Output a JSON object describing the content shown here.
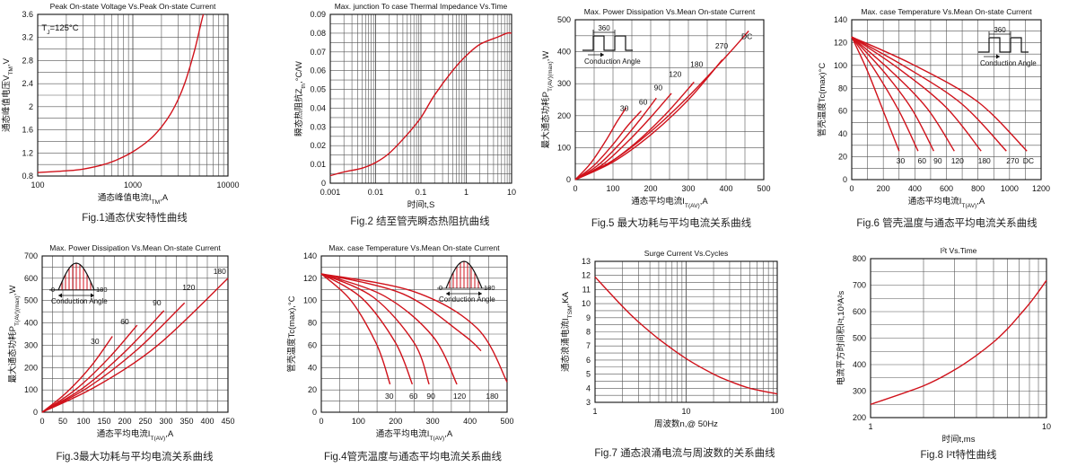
{
  "page": {
    "background": "#ffffff",
    "curve_color": "#d0121b",
    "grid_color": "#555555"
  },
  "charts": [
    {
      "id": "fig1",
      "title": "Peak On-state Voltage Vs.Peak On-state Current",
      "caption": "Fig.1通态伏安特性曲线",
      "xlabel": "通态峰值电流I_TM,A",
      "ylabel": "通态峰值电压V_TM,V",
      "xscale": "log",
      "xlim": [
        100,
        10000
      ],
      "xticks": [
        100,
        1000,
        10000
      ],
      "xticklabels": [
        "100",
        "1000",
        "10000"
      ],
      "yscale": "linear",
      "ylim": [
        0.8,
        3.6
      ],
      "yticks": [
        0.8,
        1.2,
        1.6,
        2,
        2.4,
        2.8,
        3.2,
        3.6
      ],
      "yticklabels": [
        "0.8",
        "1.2",
        "1.6",
        "2",
        "2.4",
        "2.8",
        "3.2",
        "3.6"
      ],
      "annotations": [
        {
          "text": "TJ=125°C",
          "x": 110,
          "y": 3.32
        }
      ],
      "series": [
        {
          "x": [
            100,
            200,
            300,
            500,
            700,
            1000,
            1500,
            2000,
            2500,
            3000,
            3500,
            4000,
            4500,
            5000,
            5500
          ],
          "y": [
            0.86,
            0.89,
            0.92,
            1.0,
            1.09,
            1.22,
            1.43,
            1.65,
            1.88,
            2.13,
            2.4,
            2.7,
            3.0,
            3.32,
            3.6
          ]
        }
      ]
    },
    {
      "id": "fig2",
      "title": "Max. junction To case Thermal Impedance Vs.Time",
      "caption": "Fig.2 结至管壳瞬态热阻抗曲线",
      "xlabel": "时间t,S",
      "ylabel": "瞬态热阻抗Z_th,°C/W",
      "xscale": "log",
      "xlim": [
        0.001,
        10
      ],
      "xticks": [
        0.001,
        0.01,
        0.1,
        1,
        10
      ],
      "xticklabels": [
        "0.001",
        "0.01",
        "0.1",
        "1",
        "10"
      ],
      "yscale": "linear",
      "ylim": [
        0,
        0.09
      ],
      "yticks": [
        0,
        0.01,
        0.02,
        0.03,
        0.04,
        0.05,
        0.06,
        0.07,
        0.08,
        0.09
      ],
      "yticklabels": [
        "0",
        "0.01",
        "0.02",
        "0.03",
        "0.04",
        "0.05",
        "0.06",
        "0.07",
        "0.08",
        "0.09"
      ],
      "annotations": [],
      "series": [
        {
          "x": [
            0.001,
            0.002,
            0.005,
            0.01,
            0.02,
            0.05,
            0.1,
            0.2,
            0.5,
            1,
            2,
            5,
            8,
            10
          ],
          "y": [
            0.004,
            0.006,
            0.008,
            0.011,
            0.016,
            0.026,
            0.035,
            0.047,
            0.06,
            0.068,
            0.074,
            0.078,
            0.08,
            0.08
          ]
        }
      ]
    },
    {
      "id": "fig5",
      "title": "Max. Power Dissipation Vs.Mean On-state Current",
      "caption": "Fig.5 最大功耗与平均电流关系曲线",
      "xlabel": "通态平均电流I_T(AV),A",
      "ylabel": "最大通态功耗P_T(AV)(max),W",
      "xscale": "linear",
      "xlim": [
        0,
        500
      ],
      "xticks": [
        0,
        100,
        200,
        300,
        400,
        500
      ],
      "xticklabels": [
        "0",
        "100",
        "200",
        "300",
        "400",
        "500"
      ],
      "yscale": "linear",
      "ylim": [
        0,
        500
      ],
      "yticks": [
        0,
        100,
        200,
        300,
        400,
        500
      ],
      "yticklabels": [
        "0",
        "100",
        "200",
        "300",
        "400",
        "500"
      ],
      "inset": {
        "type": "square",
        "period_label": "360",
        "label": "Conduction Angle"
      },
      "annotations": [
        {
          "text": "30",
          "x": 130,
          "y": 215
        },
        {
          "text": "60",
          "x": 180,
          "y": 235
        },
        {
          "text": "90",
          "x": 220,
          "y": 280
        },
        {
          "text": "120",
          "x": 265,
          "y": 322
        },
        {
          "text": "180",
          "x": 322,
          "y": 352
        },
        {
          "text": "270",
          "x": 388,
          "y": 410
        },
        {
          "text": "DC",
          "x": 455,
          "y": 440
        }
      ],
      "series": [
        {
          "name": "30",
          "x": [
            0,
            40,
            80,
            110,
            135
          ],
          "y": [
            0,
            50,
            120,
            180,
            225
          ]
        },
        {
          "name": "60",
          "x": [
            0,
            50,
            100,
            140,
            175
          ],
          "y": [
            0,
            45,
            110,
            170,
            215
          ]
        },
        {
          "name": "90",
          "x": [
            0,
            60,
            120,
            170,
            215
          ],
          "y": [
            0,
            45,
            115,
            185,
            255
          ]
        },
        {
          "name": "120",
          "x": [
            0,
            70,
            140,
            200,
            255
          ],
          "y": [
            0,
            45,
            120,
            195,
            270
          ]
        },
        {
          "name": "180",
          "x": [
            0,
            80,
            160,
            240,
            315
          ],
          "y": [
            0,
            45,
            115,
            205,
            305
          ]
        },
        {
          "name": "270",
          "x": [
            0,
            100,
            200,
            300,
            390
          ],
          "y": [
            0,
            55,
            140,
            250,
            375
          ]
        },
        {
          "name": "DC",
          "x": [
            0,
            100,
            200,
            300,
            400,
            460
          ],
          "y": [
            0,
            60,
            150,
            260,
            385,
            465
          ]
        }
      ]
    },
    {
      "id": "fig6",
      "title": "Max. case Temperature Vs.Mean On-state Current",
      "caption": "Fig.6 管壳温度与通态平均电流关系曲线",
      "xlabel": "通态平均电流I_T(AV),A",
      "ylabel": "管壳温度Tc(max)°C",
      "xscale": "linear",
      "xlim": [
        0,
        1200
      ],
      "xticks": [
        0,
        200,
        400,
        600,
        800,
        1000,
        1200
      ],
      "xticklabels": [
        "0",
        "200",
        "400",
        "600",
        "800",
        "1000",
        "1200"
      ],
      "yscale": "linear",
      "ylim": [
        0,
        140
      ],
      "yticks": [
        0,
        20,
        40,
        60,
        80,
        100,
        120,
        140
      ],
      "yticklabels": [
        "0",
        "20",
        "40",
        "60",
        "80",
        "100",
        "120",
        "140"
      ],
      "inset": {
        "type": "square",
        "period_label": "360",
        "label": "Conduction Angle"
      },
      "annotations": [
        {
          "text": "30",
          "x": 310,
          "y": 14
        },
        {
          "text": "60",
          "x": 445,
          "y": 14
        },
        {
          "text": "90",
          "x": 545,
          "y": 14
        },
        {
          "text": "120",
          "x": 670,
          "y": 14
        },
        {
          "text": "180",
          "x": 840,
          "y": 14
        },
        {
          "text": "270",
          "x": 1020,
          "y": 14
        },
        {
          "text": "DC",
          "x": 1120,
          "y": 14
        }
      ],
      "series": [
        {
          "name": "30",
          "x": [
            0,
            100,
            200,
            300
          ],
          "y": [
            125,
            95,
            60,
            25
          ]
        },
        {
          "name": "60",
          "x": [
            0,
            150,
            300,
            420
          ],
          "y": [
            125,
            95,
            60,
            25
          ]
        },
        {
          "name": "90",
          "x": [
            0,
            200,
            380,
            520
          ],
          "y": [
            125,
            95,
            62,
            25
          ]
        },
        {
          "name": "120",
          "x": [
            0,
            250,
            480,
            650
          ],
          "y": [
            125,
            95,
            62,
            25
          ]
        },
        {
          "name": "180",
          "x": [
            0,
            300,
            600,
            820
          ],
          "y": [
            125,
            97,
            63,
            25
          ]
        },
        {
          "name": "270",
          "x": [
            0,
            350,
            700,
            980
          ],
          "y": [
            125,
            98,
            66,
            25
          ]
        },
        {
          "name": "DC",
          "x": [
            0,
            400,
            800,
            1110
          ],
          "y": [
            125,
            100,
            68,
            25
          ]
        }
      ]
    },
    {
      "id": "fig3",
      "title": "Max. Power Dissipation Vs.Mean On-state Current",
      "caption": "Fig.3最大功耗与平均电流关系曲线",
      "xlabel": "通态平均电流I_T(AV),A",
      "ylabel": "最大通态功耗P_T(AV)(max),W",
      "xscale": "linear",
      "xlim": [
        0,
        450
      ],
      "xticks": [
        0,
        50,
        100,
        150,
        200,
        250,
        300,
        350,
        400,
        450
      ],
      "xticklabels": [
        "0",
        "50",
        "100",
        "150",
        "200",
        "250",
        "300",
        "350",
        "400",
        "450"
      ],
      "yscale": "linear",
      "ylim": [
        0,
        700
      ],
      "yticks": [
        0,
        100,
        200,
        300,
        400,
        500,
        600,
        700
      ],
      "yticklabels": [
        "0",
        "100",
        "200",
        "300",
        "400",
        "500",
        "600",
        "700"
      ],
      "inset": {
        "type": "sine",
        "left_label": "0",
        "right_label": "180",
        "label": "Conduction Angle"
      },
      "annotations": [
        {
          "text": "30",
          "x": 128,
          "y": 305
        },
        {
          "text": "60",
          "x": 200,
          "y": 395
        },
        {
          "text": "90",
          "x": 278,
          "y": 478
        },
        {
          "text": "120",
          "x": 355,
          "y": 548
        },
        {
          "text": "180",
          "x": 430,
          "y": 620
        }
      ],
      "series": [
        {
          "name": "30",
          "x": [
            0,
            60,
            120,
            170
          ],
          "y": [
            0,
            90,
            210,
            340
          ]
        },
        {
          "name": "60",
          "x": [
            0,
            80,
            160,
            230
          ],
          "y": [
            0,
            100,
            240,
            390
          ]
        },
        {
          "name": "90",
          "x": [
            0,
            100,
            200,
            295
          ],
          "y": [
            0,
            110,
            270,
            455
          ]
        },
        {
          "name": "120",
          "x": [
            0,
            110,
            230,
            345
          ],
          "y": [
            0,
            110,
            280,
            490
          ]
        },
        {
          "name": "180",
          "x": [
            0,
            130,
            280,
            450
          ],
          "y": [
            0,
            115,
            300,
            600
          ]
        }
      ]
    },
    {
      "id": "fig4",
      "title": "Max. case Temperature Vs.Mean On-state Current",
      "caption": "Fig.4管壳温度与通态平均电流关系曲线",
      "xlabel": "通态平均电流I_T(AV),A",
      "ylabel": "管壳温度Tc(max),°C",
      "xscale": "linear",
      "xlim": [
        0,
        500
      ],
      "xticks": [
        0,
        100,
        200,
        300,
        400,
        500
      ],
      "xticklabels": [
        "0",
        "100",
        "200",
        "300",
        "400",
        "500"
      ],
      "yscale": "linear",
      "ylim": [
        0,
        140
      ],
      "yticks": [
        0,
        20,
        40,
        60,
        80,
        100,
        120,
        140
      ],
      "yticklabels": [
        "0",
        "20",
        "40",
        "60",
        "80",
        "100",
        "120",
        "140"
      ],
      "inset": {
        "type": "sine",
        "left_label": "0",
        "right_label": "180",
        "label": "Conduction Angle"
      },
      "annotations": [
        {
          "text": "30",
          "x": 183,
          "y": 12
        },
        {
          "text": "60",
          "x": 248,
          "y": 12
        },
        {
          "text": "90",
          "x": 295,
          "y": 12
        },
        {
          "text": "120",
          "x": 372,
          "y": 12
        },
        {
          "text": "180",
          "x": 460,
          "y": 12
        }
      ],
      "series": [
        {
          "name": "30",
          "x": [
            0,
            80,
            150,
            185
          ],
          "y": [
            124,
            100,
            60,
            25
          ]
        },
        {
          "name": "60",
          "x": [
            0,
            110,
            200,
            245
          ],
          "y": [
            124,
            102,
            62,
            25
          ]
        },
        {
          "name": "90",
          "x": [
            0,
            140,
            250,
            290
          ],
          "y": [
            124,
            103,
            62,
            25
          ]
        },
        {
          "name": "120",
          "x": [
            0,
            170,
            300,
            365
          ],
          "y": [
            124,
            104,
            68,
            25
          ]
        },
        {
          "name": "180",
          "x": [
            0,
            220,
            380,
            430
          ],
          "y": [
            124,
            106,
            70,
            55
          ]
        },
        {
          "name": "",
          "x": [
            0,
            250,
            420,
            500
          ],
          "y": [
            124,
            108,
            75,
            27
          ]
        }
      ]
    },
    {
      "id": "fig7",
      "title": "Surge Current Vs.Cycles",
      "caption": "Fig.7 通态浪涌电流与周波数的关系曲线",
      "xlabel": "周波数n,@ 50Hz",
      "ylabel": "通态浪涌电流I_TSM,KA",
      "xscale": "log",
      "xlim": [
        1,
        100
      ],
      "xticks": [
        1,
        10,
        100
      ],
      "xticklabels": [
        "1",
        "10",
        "100"
      ],
      "yscale": "linear",
      "ylim": [
        3,
        13
      ],
      "yticks": [
        3,
        4,
        5,
        6,
        7,
        8,
        9,
        10,
        11,
        12,
        13
      ],
      "yticklabels": [
        "3",
        "4",
        "5",
        "6",
        "7",
        "8",
        "9",
        "10",
        "11",
        "12",
        "13"
      ],
      "annotations": [],
      "series": [
        {
          "x": [
            1,
            2,
            3,
            5,
            10,
            20,
            30,
            50,
            100
          ],
          "y": [
            11.9,
            9.8,
            8.7,
            7.5,
            6.1,
            5.0,
            4.5,
            4.0,
            3.6
          ]
        }
      ]
    },
    {
      "id": "fig8",
      "title": "I²t Vs.Time",
      "caption": "Fig.8 I²t特性曲线",
      "xlabel": "时间t,ms",
      "ylabel": "电流平方时间积I²t,10³A²s",
      "xscale": "log",
      "xlim": [
        1,
        10
      ],
      "xticks": [
        1,
        10
      ],
      "xticklabels": [
        "1",
        "10"
      ],
      "yscale": "linear",
      "ylim": [
        200,
        800
      ],
      "yticks": [
        200,
        300,
        400,
        500,
        600,
        700,
        800
      ],
      "yticklabels": [
        "200",
        "300",
        "400",
        "500",
        "600",
        "700",
        "800"
      ],
      "annotations": [],
      "series": [
        {
          "x": [
            1,
            2,
            3,
            4,
            5,
            6,
            7,
            8,
            9,
            10
          ],
          "y": [
            250,
            320,
            380,
            435,
            485,
            535,
            585,
            630,
            675,
            718
          ]
        }
      ]
    }
  ]
}
